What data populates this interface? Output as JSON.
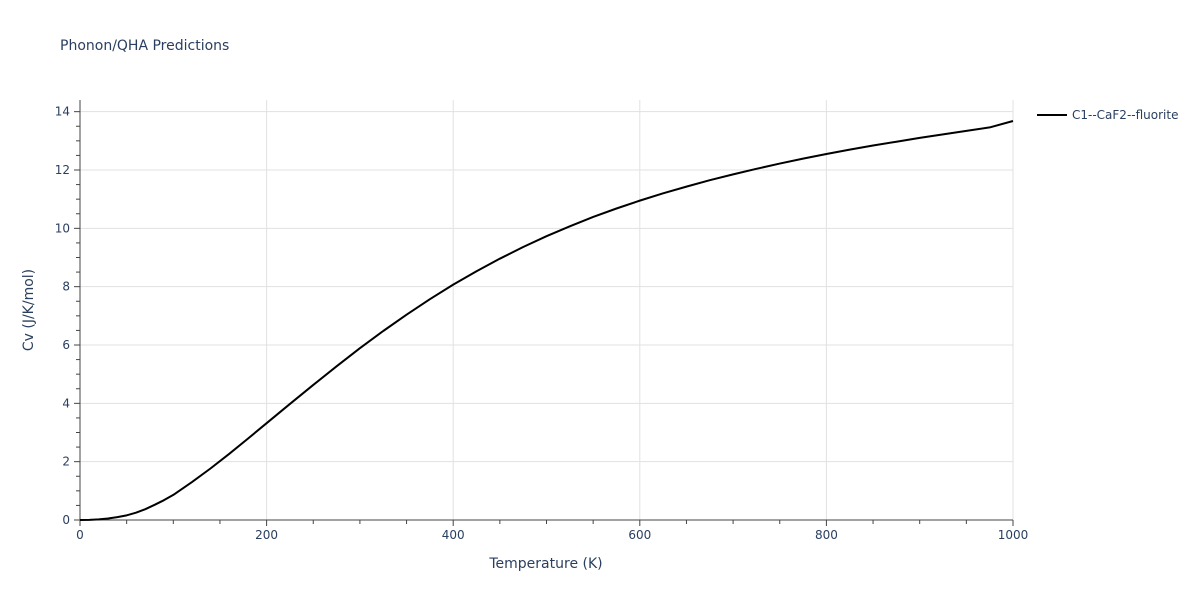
{
  "chart_data": {
    "type": "line",
    "title": "Phonon/QHA Predictions",
    "xlabel": "Temperature (K)",
    "ylabel": "Cv (J/K/mol)",
    "xlim": [
      0,
      1000
    ],
    "ylim": [
      0,
      14.4
    ],
    "xticks": [
      0,
      200,
      400,
      600,
      800,
      1000
    ],
    "yticks": [
      0,
      2,
      4,
      6,
      8,
      10,
      12,
      14
    ],
    "grid": true,
    "legend_position": "top-right",
    "series": [
      {
        "name": "C1--CaF2--fluorite",
        "color": "#000000",
        "x": [
          0,
          10,
          20,
          30,
          40,
          50,
          60,
          70,
          80,
          90,
          100,
          120,
          140,
          160,
          180,
          200,
          225,
          250,
          275,
          300,
          325,
          350,
          375,
          400,
          425,
          450,
          475,
          500,
          525,
          550,
          575,
          600,
          625,
          650,
          675,
          700,
          725,
          750,
          775,
          800,
          825,
          850,
          875,
          900,
          925,
          950,
          975,
          1000
        ],
        "y": [
          0,
          0.005,
          0.02,
          0.05,
          0.1,
          0.16,
          0.25,
          0.37,
          0.52,
          0.68,
          0.86,
          1.3,
          1.77,
          2.27,
          2.79,
          3.32,
          3.98,
          4.63,
          5.27,
          5.89,
          6.48,
          7.04,
          7.57,
          8.07,
          8.53,
          8.96,
          9.36,
          9.73,
          10.07,
          10.39,
          10.68,
          10.95,
          11.2,
          11.43,
          11.65,
          11.85,
          12.04,
          12.22,
          12.39,
          12.55,
          12.7,
          12.84,
          12.97,
          13.1,
          13.22,
          13.34,
          13.46,
          13.68
        ]
      }
    ]
  }
}
